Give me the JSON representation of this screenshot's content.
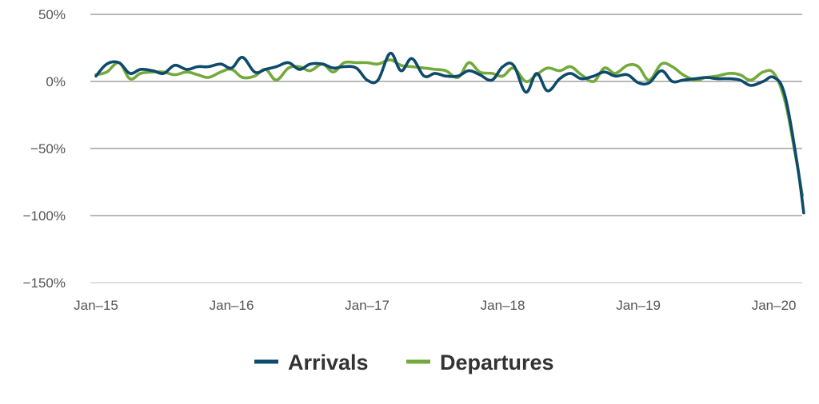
{
  "chart_data": {
    "type": "line",
    "title": "",
    "xlabel": "",
    "ylabel": "",
    "ylim": [
      -150,
      50
    ],
    "yticks": [
      {
        "value": 50,
        "label": "50%"
      },
      {
        "value": 0,
        "label": "0%"
      },
      {
        "value": -50,
        "label": "−50%"
      },
      {
        "value": -100,
        "label": "−100%"
      },
      {
        "value": -150,
        "label": "−150%"
      }
    ],
    "xlim": [
      2015.0,
      2020.25
    ],
    "xticks": [
      {
        "value": 2015,
        "label": "Jan–15"
      },
      {
        "value": 2016,
        "label": "Jan–16"
      },
      {
        "value": 2017,
        "label": "Jan–17"
      },
      {
        "value": 2018,
        "label": "Jan–18"
      },
      {
        "value": 2019,
        "label": "Jan–19"
      },
      {
        "value": 2020,
        "label": "Jan–20"
      }
    ],
    "grid": true,
    "legend_position": "bottom-center",
    "series": [
      {
        "name": "Arrivals",
        "color": "#0e4a6b",
        "points": [
          [
            2015.0,
            4
          ],
          [
            2015.08,
            13
          ],
          [
            2015.17,
            14
          ],
          [
            2015.25,
            6
          ],
          [
            2015.33,
            9
          ],
          [
            2015.42,
            8
          ],
          [
            2015.5,
            6
          ],
          [
            2015.58,
            12
          ],
          [
            2015.67,
            9
          ],
          [
            2015.75,
            11
          ],
          [
            2015.83,
            11
          ],
          [
            2015.92,
            13
          ],
          [
            2016.0,
            10
          ],
          [
            2016.08,
            18
          ],
          [
            2016.17,
            7
          ],
          [
            2016.25,
            9
          ],
          [
            2016.33,
            11
          ],
          [
            2016.42,
            14
          ],
          [
            2016.5,
            9
          ],
          [
            2016.58,
            13
          ],
          [
            2016.67,
            13
          ],
          [
            2016.75,
            10
          ],
          [
            2016.83,
            11
          ],
          [
            2016.92,
            10
          ],
          [
            2017.0,
            1
          ],
          [
            2017.08,
            1
          ],
          [
            2017.17,
            21
          ],
          [
            2017.25,
            8
          ],
          [
            2017.33,
            17
          ],
          [
            2017.42,
            4
          ],
          [
            2017.5,
            6
          ],
          [
            2017.58,
            4
          ],
          [
            2017.67,
            4
          ],
          [
            2017.75,
            8
          ],
          [
            2017.83,
            5
          ],
          [
            2017.92,
            1
          ],
          [
            2018.0,
            11
          ],
          [
            2018.08,
            12
          ],
          [
            2018.17,
            -8
          ],
          [
            2018.25,
            6
          ],
          [
            2018.33,
            -7
          ],
          [
            2018.42,
            2
          ],
          [
            2018.5,
            6
          ],
          [
            2018.58,
            2
          ],
          [
            2018.67,
            4
          ],
          [
            2018.75,
            7
          ],
          [
            2018.83,
            4
          ],
          [
            2018.92,
            5
          ],
          [
            2019.0,
            -1
          ],
          [
            2019.08,
            -1
          ],
          [
            2019.17,
            8
          ],
          [
            2019.25,
            0
          ],
          [
            2019.33,
            1
          ],
          [
            2019.42,
            2
          ],
          [
            2019.5,
            3
          ],
          [
            2019.58,
            2
          ],
          [
            2019.67,
            2
          ],
          [
            2019.75,
            1
          ],
          [
            2019.83,
            -3
          ],
          [
            2019.92,
            0
          ],
          [
            2020.0,
            3
          ],
          [
            2020.08,
            -10
          ],
          [
            2020.17,
            -60
          ],
          [
            2020.22,
            -98
          ]
        ]
      },
      {
        "name": "Departures",
        "color": "#74a93c",
        "points": [
          [
            2015.0,
            5
          ],
          [
            2015.08,
            7
          ],
          [
            2015.17,
            14
          ],
          [
            2015.25,
            2
          ],
          [
            2015.33,
            6
          ],
          [
            2015.42,
            7
          ],
          [
            2015.5,
            7
          ],
          [
            2015.58,
            5
          ],
          [
            2015.67,
            7
          ],
          [
            2015.75,
            5
          ],
          [
            2015.83,
            3
          ],
          [
            2015.92,
            7
          ],
          [
            2016.0,
            9
          ],
          [
            2016.08,
            3
          ],
          [
            2016.17,
            4
          ],
          [
            2016.25,
            9
          ],
          [
            2016.33,
            1
          ],
          [
            2016.42,
            10
          ],
          [
            2016.5,
            11
          ],
          [
            2016.58,
            8
          ],
          [
            2016.67,
            13
          ],
          [
            2016.75,
            7
          ],
          [
            2016.83,
            14
          ],
          [
            2016.92,
            14
          ],
          [
            2017.0,
            14
          ],
          [
            2017.08,
            13
          ],
          [
            2017.17,
            16
          ],
          [
            2017.25,
            12
          ],
          [
            2017.33,
            11
          ],
          [
            2017.42,
            10
          ],
          [
            2017.5,
            9
          ],
          [
            2017.58,
            8
          ],
          [
            2017.67,
            3
          ],
          [
            2017.75,
            14
          ],
          [
            2017.83,
            7
          ],
          [
            2017.92,
            6
          ],
          [
            2018.0,
            4
          ],
          [
            2018.08,
            10
          ],
          [
            2018.17,
            0
          ],
          [
            2018.25,
            5
          ],
          [
            2018.33,
            10
          ],
          [
            2018.42,
            8
          ],
          [
            2018.5,
            11
          ],
          [
            2018.58,
            5
          ],
          [
            2018.67,
            0
          ],
          [
            2018.75,
            10
          ],
          [
            2018.83,
            6
          ],
          [
            2018.92,
            12
          ],
          [
            2019.0,
            11
          ],
          [
            2019.08,
            1
          ],
          [
            2019.17,
            13
          ],
          [
            2019.25,
            11
          ],
          [
            2019.33,
            5
          ],
          [
            2019.42,
            1
          ],
          [
            2019.5,
            3
          ],
          [
            2019.58,
            4
          ],
          [
            2019.67,
            6
          ],
          [
            2019.75,
            5
          ],
          [
            2019.83,
            1
          ],
          [
            2019.92,
            7
          ],
          [
            2020.0,
            6
          ],
          [
            2020.08,
            -14
          ],
          [
            2020.15,
            -50
          ],
          [
            2020.21,
            -85
          ]
        ]
      }
    ]
  }
}
